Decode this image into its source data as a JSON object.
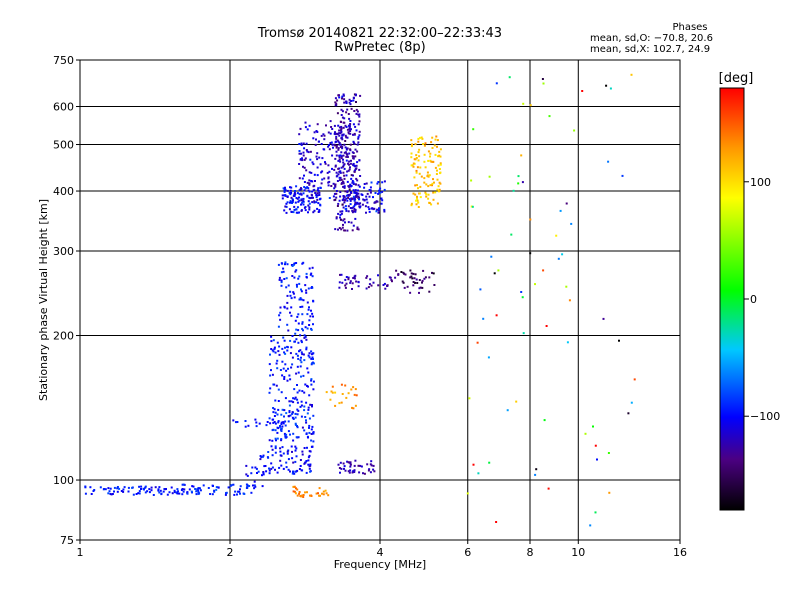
{
  "header": {
    "title_line1": "Tromsø 20140821 22:32:00–22:33:43",
    "title_line2": "RwPretec (8p)"
  },
  "phases": {
    "title": "Phases",
    "line_o": "mean, sd,O: −70.8, 20.6",
    "line_x": "mean, sd,X: 102.7, 24.9"
  },
  "colorbar": {
    "unit": "[deg]",
    "ticks": [
      {
        "value": 100,
        "label": "100"
      },
      {
        "value": 0,
        "label": "0"
      },
      {
        "value": -100,
        "label": "−100"
      }
    ],
    "range": [
      -180,
      180
    ]
  },
  "chart_data": {
    "type": "scatter",
    "title": "Tromsø 20140821 22:32:00–22:33:43",
    "subtitle": "RwPretec (8p)",
    "xlabel": "Frequency [MHz]",
    "ylabel": "Stationary phase Virtual Height [km]",
    "xscale": "log",
    "yscale": "log",
    "xlim": [
      1,
      16
    ],
    "ylim": [
      75,
      750
    ],
    "xticks": [
      {
        "value": 1,
        "label": "1"
      },
      {
        "value": 2,
        "label": "2"
      },
      {
        "value": 4,
        "label": "4"
      },
      {
        "value": 6,
        "label": "6"
      },
      {
        "value": 8,
        "label": "8"
      },
      {
        "value": 10,
        "label": "10"
      },
      {
        "value": 16,
        "label": "16"
      }
    ],
    "yticks": [
      {
        "value": 75,
        "label": "75"
      },
      {
        "value": 100,
        "label": "100"
      },
      {
        "value": 200,
        "label": "200"
      },
      {
        "value": 300,
        "label": "300"
      },
      {
        "value": 400,
        "label": "400"
      },
      {
        "value": 500,
        "label": "500"
      },
      {
        "value": 600,
        "label": "600"
      },
      {
        "value": 750,
        "label": "750"
      }
    ],
    "grid": true,
    "color_variable": "phase [deg]",
    "clusters": [
      {
        "fmin": 1.0,
        "fmax": 1.75,
        "hmin": 93,
        "hmax": 97,
        "n": 90,
        "phase": -95,
        "phase_sd": 8
      },
      {
        "fmin": 1.6,
        "fmax": 2.25,
        "hmin": 93,
        "hmax": 98,
        "n": 55,
        "phase": -92,
        "phase_sd": 8
      },
      {
        "fmin": 2.15,
        "fmax": 2.35,
        "hmin": 97,
        "hmax": 108,
        "n": 14,
        "phase": -95,
        "phase_sd": 8
      },
      {
        "fmin": 2.3,
        "fmax": 2.95,
        "hmin": 103,
        "hmax": 118,
        "n": 90,
        "phase": -100,
        "phase_sd": 10
      },
      {
        "fmin": 2.4,
        "fmax": 2.95,
        "hmin": 120,
        "hmax": 200,
        "n": 230,
        "phase": -95,
        "phase_sd": 10
      },
      {
        "fmin": 2.5,
        "fmax": 2.95,
        "hmin": 200,
        "hmax": 285,
        "n": 110,
        "phase": -97,
        "phase_sd": 10
      },
      {
        "fmin": 2.0,
        "fmax": 2.6,
        "hmin": 128,
        "hmax": 134,
        "n": 25,
        "phase": -95,
        "phase_sd": 6
      },
      {
        "fmin": 2.6,
        "fmax": 3.15,
        "hmin": 92,
        "hmax": 97,
        "n": 32,
        "phase": 135,
        "phase_sd": 8
      },
      {
        "fmin": 3.3,
        "fmax": 3.9,
        "hmin": 103,
        "hmax": 110,
        "n": 42,
        "phase": -125,
        "phase_sd": 8
      },
      {
        "fmin": 3.1,
        "fmax": 3.6,
        "hmin": 140,
        "hmax": 158,
        "n": 22,
        "phase": 130,
        "phase_sd": 10
      },
      {
        "fmin": 2.55,
        "fmax": 3.05,
        "hmin": 360,
        "hmax": 410,
        "n": 120,
        "phase": -100,
        "phase_sd": 10
      },
      {
        "fmin": 2.75,
        "fmax": 3.6,
        "hmin": 380,
        "hmax": 560,
        "n": 230,
        "phase": -115,
        "phase_sd": 12
      },
      {
        "fmin": 3.25,
        "fmax": 3.65,
        "hmin": 330,
        "hmax": 640,
        "n": 230,
        "phase": -125,
        "phase_sd": 12
      },
      {
        "fmin": 3.4,
        "fmax": 4.1,
        "hmin": 360,
        "hmax": 420,
        "n": 110,
        "phase": -105,
        "phase_sd": 12
      },
      {
        "fmin": 3.3,
        "fmax": 4.3,
        "hmin": 250,
        "hmax": 268,
        "n": 45,
        "phase": -125,
        "phase_sd": 10
      },
      {
        "fmin": 4.3,
        "fmax": 5.2,
        "hmin": 245,
        "hmax": 275,
        "n": 40,
        "phase": -150,
        "phase_sd": 15
      },
      {
        "fmin": 4.6,
        "fmax": 5.3,
        "hmin": 370,
        "hmax": 520,
        "n": 120,
        "phase": 110,
        "phase_sd": 12
      },
      {
        "fmin": 6.0,
        "fmax": 13.0,
        "hmin": 80,
        "hmax": 700,
        "n": 75,
        "phase": 0,
        "phase_sd": 110
      }
    ]
  }
}
